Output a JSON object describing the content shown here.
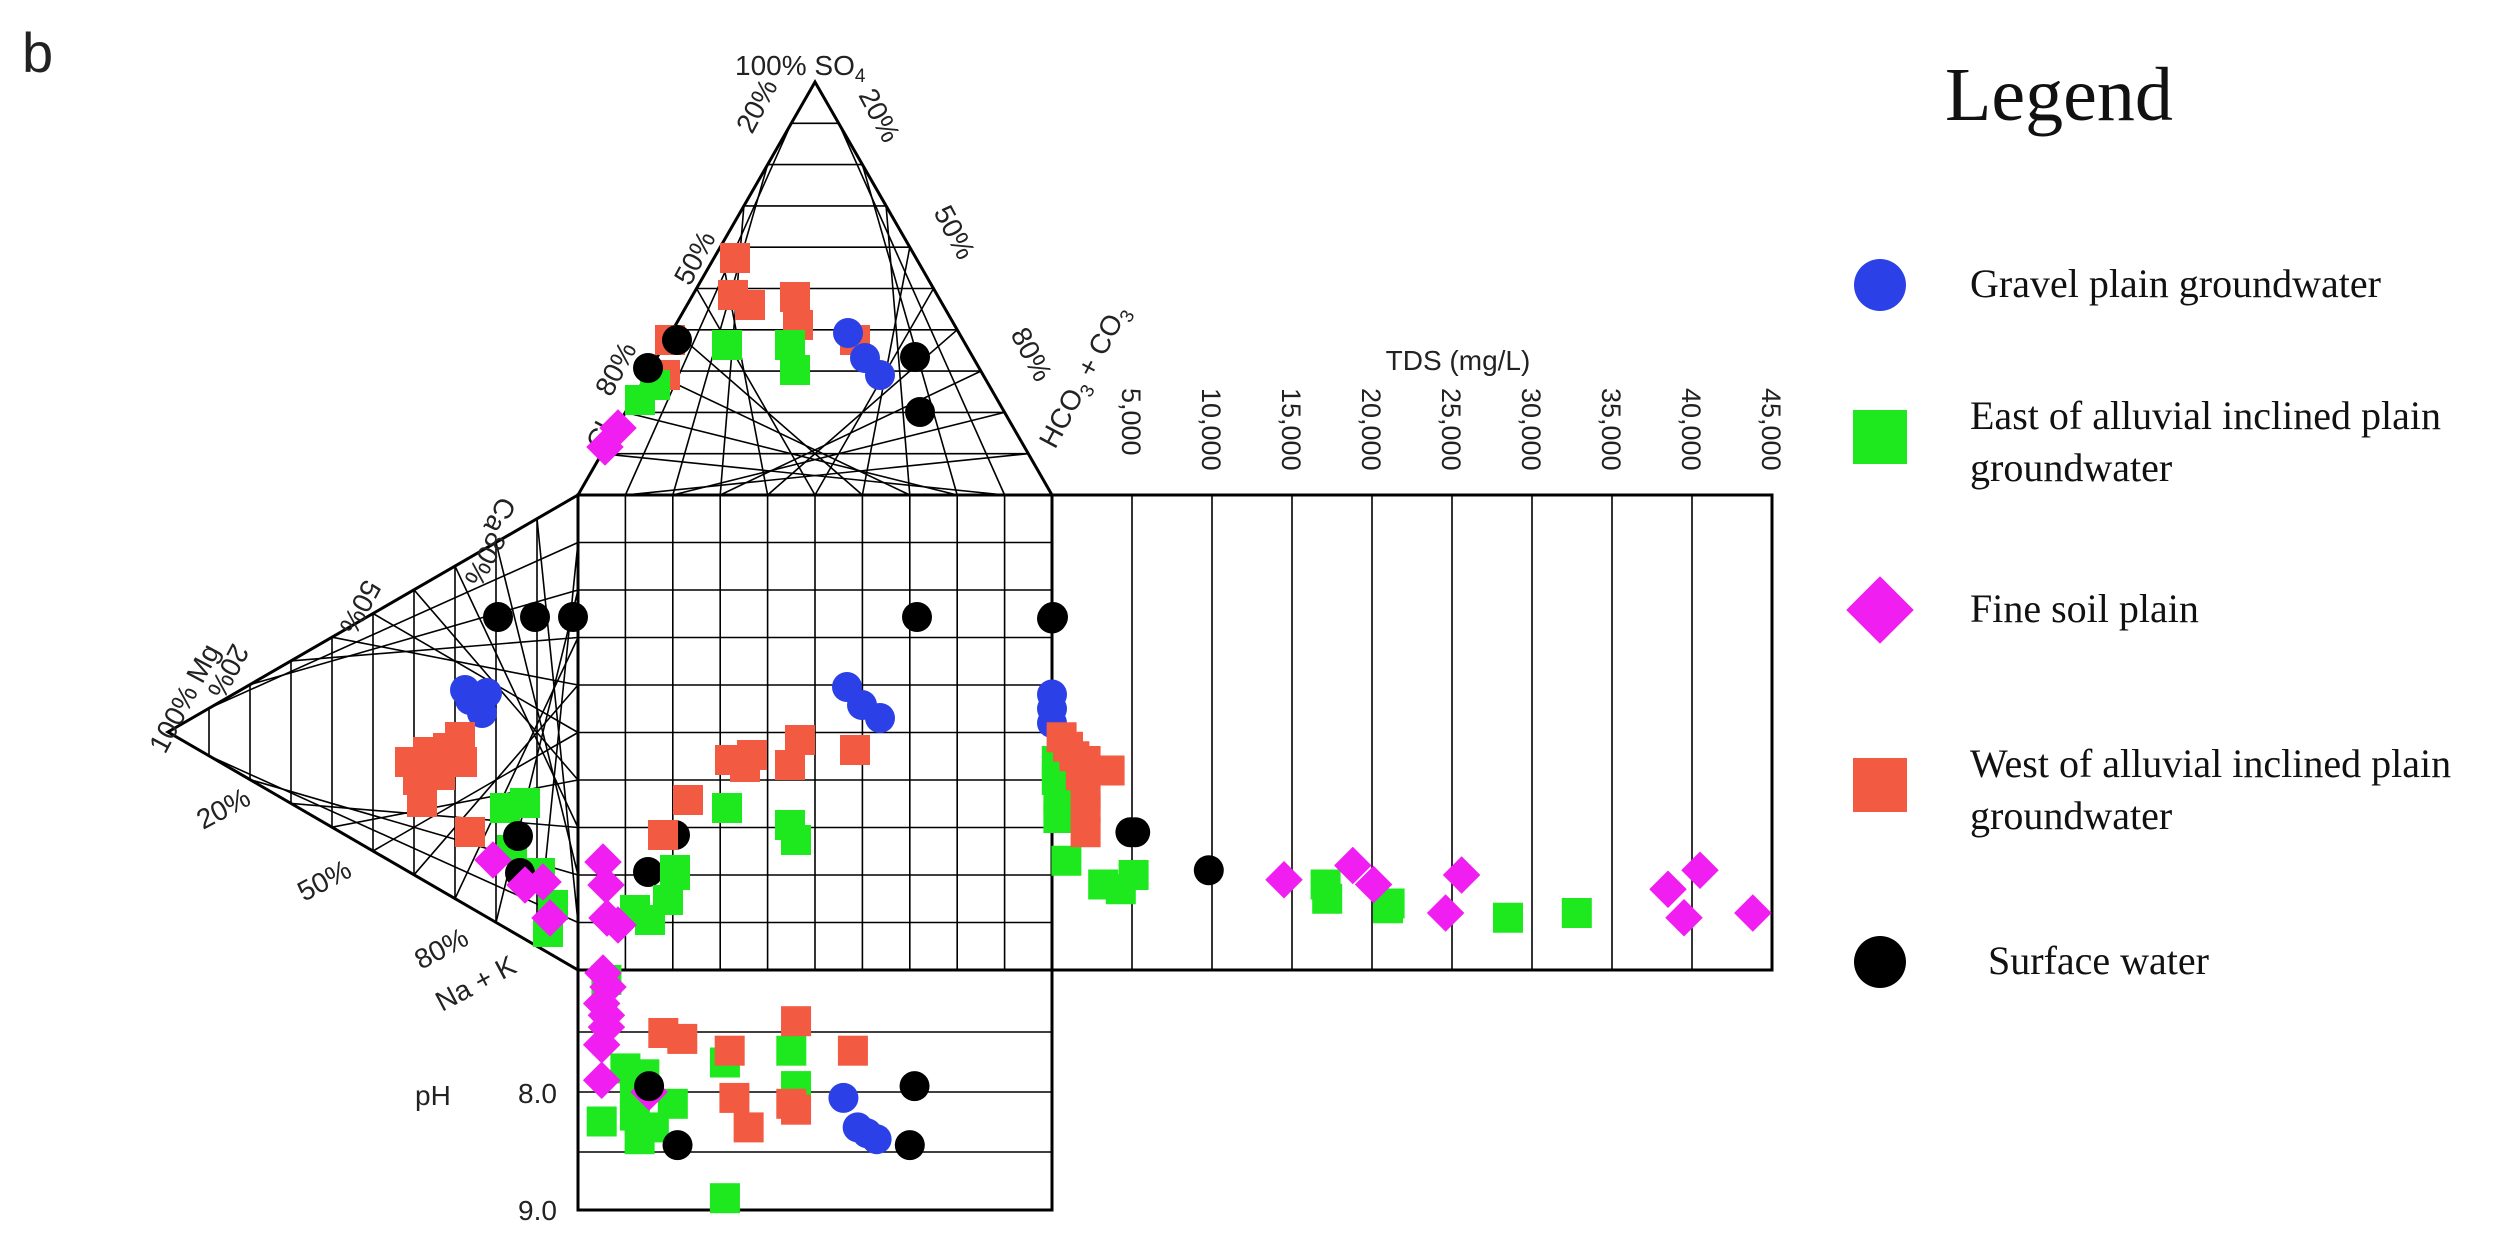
{
  "panel_label": "b",
  "colors": {
    "gravel": "#2b40e6",
    "east": "#1ee81e",
    "fine": "#f01ef0",
    "west": "#f25a42",
    "surface": "#000000"
  },
  "legend": {
    "title": "Legend",
    "items": [
      {
        "label_lines": [
          "Gravel plain groundwater"
        ],
        "color_key": "gravel",
        "shape": "circle"
      },
      {
        "label_lines": [
          "East of alluvial inclined plain",
          "groundwater"
        ],
        "color_key": "east",
        "shape": "square"
      },
      {
        "label_lines": [
          "Fine soil plain"
        ],
        "color_key": "fine",
        "shape": "diamond"
      },
      {
        "label_lines": [
          "West of alluvial inclined plain",
          "groundwater"
        ],
        "color_key": "west",
        "shape": "square"
      },
      {
        "label_lines": [
          "Surface water"
        ],
        "color_key": "surface",
        "shape": "circle"
      }
    ]
  },
  "labels": {
    "so4_apex": "100% SO",
    "so4_sub": "4",
    "so4_20_left": "20%",
    "so4_20_right": "20%",
    "so4_50_left": "50%",
    "so4_50_right": "50%",
    "so4_80_left": "80%",
    "so4_80_right": "80%",
    "cl_label": "Cl",
    "hco3": "HCO",
    "hco3_sub": "3",
    "hco3_plus": " + CO",
    "co3_sub": "3",
    "ca_label": "Ca",
    "ca_80": "80%",
    "ca_50": "50%",
    "ca_20": "20%",
    "mg_100": "100% Mg",
    "mg_20": "20%",
    "mg_50": "50%",
    "mg_80": "80%",
    "nak": "Na + K",
    "tds_title": "TDS (mg/L)",
    "ph_title": "pH",
    "ph_8": "8.0",
    "ph_9": "9.0"
  },
  "chart_data": [
    {
      "type": "scatter",
      "title": "TDS (mg/L)",
      "xlim": [
        0,
        45000
      ],
      "tick_labels": [
        "5,000",
        "10,000",
        "15,000",
        "20,000",
        "25,000",
        "30,000",
        "35,000",
        "40,000",
        "45,000"
      ],
      "series": [
        {
          "name": "Gravel plain groundwater",
          "points": [
            [
              0,
              0.42
            ],
            [
              0,
              0.45
            ],
            [
              0,
              0.48
            ]
          ]
        },
        {
          "name": "East of alluvial inclined plain groundwater",
          "points": [
            [
              300,
              0.56
            ],
            [
              300,
              0.6
            ],
            [
              400,
              0.64
            ],
            [
              400,
              0.68
            ],
            [
              900,
              0.77
            ],
            [
              3200,
              0.82
            ],
            [
              4300,
              0.83
            ],
            [
              5100,
              0.8
            ],
            [
              17100,
              0.82
            ],
            [
              17200,
              0.85
            ],
            [
              21000,
              0.87
            ],
            [
              21100,
              0.86
            ],
            [
              28500,
              0.89
            ],
            [
              32800,
              0.88
            ]
          ]
        },
        {
          "name": "Fine soil plain",
          "points": [
            [
              14500,
              0.81
            ],
            [
              18800,
              0.78
            ],
            [
              20100,
              0.82
            ],
            [
              24600,
              0.88
            ],
            [
              25600,
              0.8
            ],
            [
              38500,
              0.83
            ],
            [
              39500,
              0.89
            ],
            [
              40500,
              0.79
            ],
            [
              43800,
              0.88
            ]
          ]
        },
        {
          "name": "West of alluvial inclined plain groundwater",
          "points": [
            [
              600,
              0.51
            ],
            [
              1000,
              0.53
            ],
            [
              1400,
              0.55
            ],
            [
              2100,
              0.56
            ],
            [
              1800,
              0.59
            ],
            [
              3600,
              0.58
            ],
            [
              2100,
              0.63
            ],
            [
              2100,
              0.66
            ],
            [
              2100,
              0.71
            ]
          ]
        },
        {
          "name": "Surface water",
          "points": [
            [
              0,
              0.26
            ],
            [
              4900,
              0.71
            ],
            [
              5200,
              0.71
            ],
            [
              9800,
              0.79
            ]
          ]
        }
      ]
    },
    {
      "type": "scatter",
      "title": "pH",
      "ylabel": "pH",
      "ylim": [
        7.0,
        9.0
      ],
      "tick_labels": [
        "8.0",
        "9.0"
      ],
      "series": [
        {
          "name": "Gravel plain groundwater",
          "points": [
            [
              0.56,
              8.05
            ],
            [
              0.59,
              8.3
            ],
            [
              0.61,
              8.35
            ],
            [
              0.63,
              8.4
            ]
          ]
        },
        {
          "name": "East of alluvial inclined plain groundwater",
          "points": [
            [
              0.06,
              7.05
            ],
            [
              0.1,
              7.8
            ],
            [
              0.12,
              8.0
            ],
            [
              0.14,
              7.85
            ],
            [
              0.12,
              8.2
            ],
            [
              0.13,
              8.4
            ],
            [
              0.16,
              8.3
            ],
            [
              0.2,
              8.1
            ],
            [
              0.31,
              7.75
            ],
            [
              0.45,
              7.65
            ],
            [
              0.46,
              7.95
            ],
            [
              0.31,
              8.9
            ],
            [
              0.05,
              8.25
            ]
          ]
        },
        {
          "name": "Fine soil plain",
          "points": [
            [
              0.05,
              7.25
            ],
            [
              0.06,
              7.35
            ],
            [
              0.06,
              7.45
            ],
            [
              0.05,
              7.6
            ],
            [
              0.05,
              7.9
            ],
            [
              0.15,
              8.0
            ]
          ]
        },
        {
          "name": "West of alluvial inclined plain groundwater",
          "points": [
            [
              0.18,
              7.5
            ],
            [
              0.22,
              7.55
            ],
            [
              0.32,
              7.65
            ],
            [
              0.46,
              7.4
            ],
            [
              0.58,
              7.65
            ],
            [
              0.33,
              8.05
            ],
            [
              0.36,
              8.3
            ],
            [
              0.45,
              8.1
            ],
            [
              0.46,
              8.15
            ]
          ]
        },
        {
          "name": "Surface water",
          "points": [
            [
              0.15,
              7.95
            ],
            [
              0.21,
              8.45
            ],
            [
              0.71,
              7.95
            ],
            [
              0.7,
              8.45
            ]
          ]
        }
      ]
    }
  ]
}
